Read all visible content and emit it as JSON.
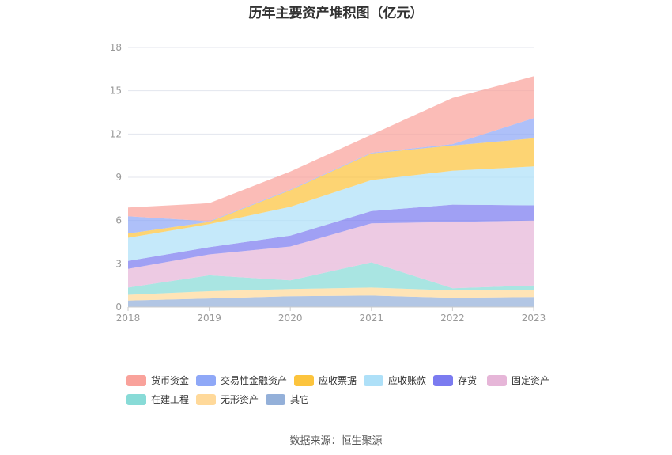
{
  "chart_data": {
    "type": "area",
    "stacked": true,
    "title": "历年主要资产堆积图（亿元）",
    "xlabel": "",
    "ylabel": "",
    "ylim": [
      0,
      18
    ],
    "yticks": [
      0,
      3,
      6,
      9,
      12,
      15,
      18
    ],
    "categories": [
      "2018",
      "2019",
      "2020",
      "2021",
      "2022",
      "2023"
    ],
    "series": [
      {
        "name": "其它",
        "color": "#94b0d9",
        "values": [
          0.45,
          0.6,
          0.75,
          0.8,
          0.65,
          0.7
        ]
      },
      {
        "name": "无形资产",
        "color": "#ffd99a",
        "values": [
          0.4,
          0.5,
          0.5,
          0.55,
          0.5,
          0.5
        ]
      },
      {
        "name": "在建工程",
        "color": "#88dbd7",
        "values": [
          0.5,
          1.1,
          0.6,
          1.75,
          0.15,
          0.3
        ]
      },
      {
        "name": "固定资产",
        "color": "#e6b6d8",
        "values": [
          1.3,
          1.45,
          2.35,
          2.7,
          4.6,
          4.5
        ]
      },
      {
        "name": "存货",
        "color": "#7b7bf0",
        "values": [
          0.55,
          0.5,
          0.75,
          0.85,
          1.2,
          1.05
        ]
      },
      {
        "name": "应收账款",
        "color": "#aee0f8",
        "values": [
          1.6,
          1.6,
          2.0,
          2.15,
          2.35,
          2.7
        ]
      },
      {
        "name": "应收票据",
        "color": "#fcc43d",
        "values": [
          0.3,
          0.15,
          1.15,
          1.85,
          1.75,
          1.95
        ]
      },
      {
        "name": "交易性金融资产",
        "color": "#8fa8f7",
        "values": [
          1.2,
          0.05,
          0.05,
          0.05,
          0.1,
          1.4
        ]
      },
      {
        "name": "货币资金",
        "color": "#f9a29b",
        "values": [
          0.6,
          1.25,
          1.25,
          1.25,
          3.2,
          2.9
        ]
      }
    ],
    "legend_position": "bottom",
    "grid": true
  },
  "legend_order": [
    "货币资金",
    "交易性金融资产",
    "应收票据",
    "应收账款",
    "存货",
    "固定资产",
    "在建工程",
    "无形资产",
    "其它"
  ],
  "source": "数据来源：恒生聚源"
}
